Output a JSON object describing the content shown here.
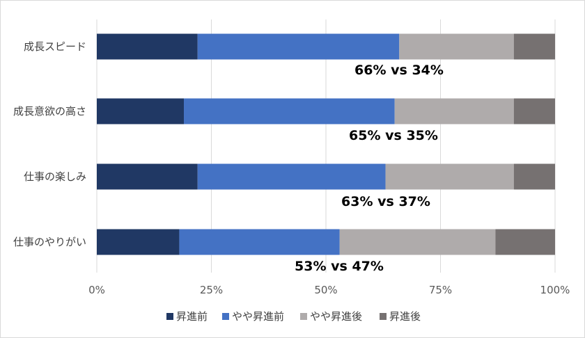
{
  "chart_data": {
    "type": "bar",
    "orientation": "horizontal",
    "stacked": "percent",
    "categories": [
      "成長スピード",
      "成長意欲の高さ",
      "仕事の楽しみ",
      "仕事のやりがい"
    ],
    "series": [
      {
        "name": "昇進前",
        "color": "#203864",
        "values": [
          22,
          19,
          22,
          18
        ]
      },
      {
        "name": "やや昇進前",
        "color": "#4472c4",
        "values": [
          44,
          46,
          41,
          35
        ]
      },
      {
        "name": "やや昇進後",
        "color": "#afabab",
        "values": [
          25,
          26,
          28,
          34
        ]
      },
      {
        "name": "昇進後",
        "color": "#767171",
        "values": [
          9,
          9,
          9,
          13
        ]
      }
    ],
    "annotations": [
      "66% vs 34%",
      "65% vs 35%",
      "63% vs 37%",
      "53% vs 47%"
    ],
    "xticks": [
      "0%",
      "25%",
      "50%",
      "75%",
      "100%"
    ],
    "xlim": [
      0,
      100
    ],
    "grid": "vertical",
    "legend": "bottom",
    "title": "",
    "xlabel": "",
    "ylabel": ""
  }
}
